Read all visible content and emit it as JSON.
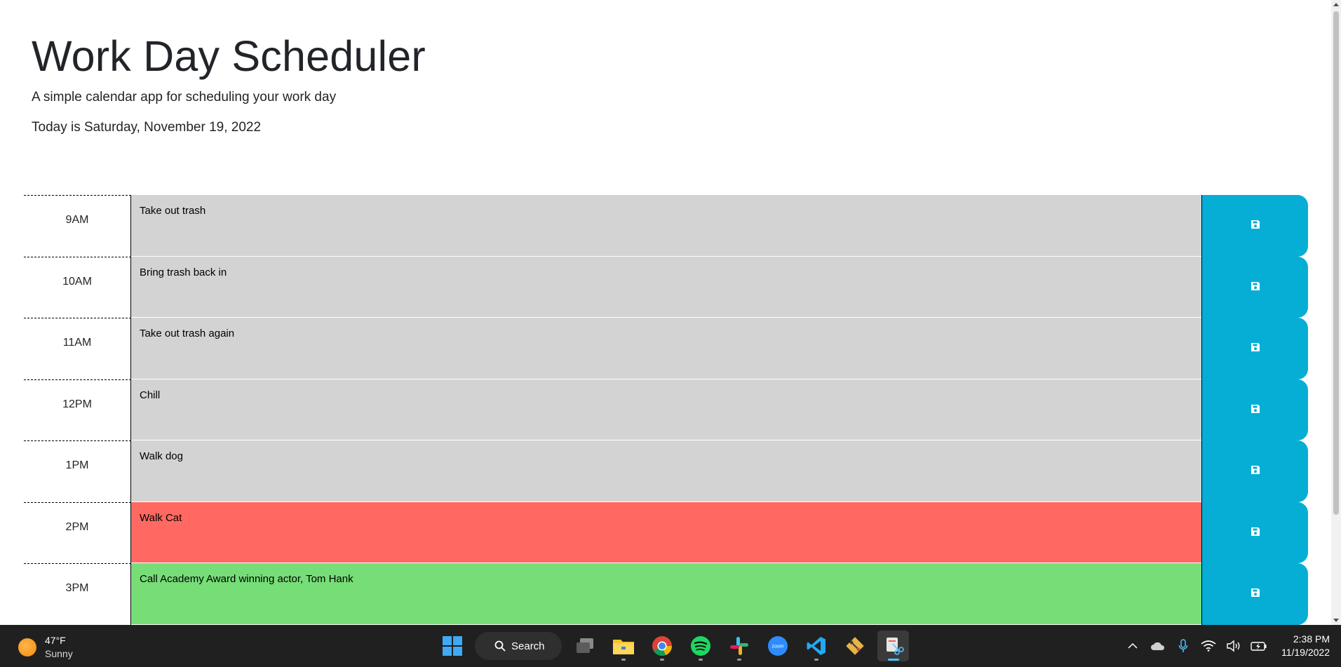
{
  "header": {
    "title": "Work Day Scheduler",
    "lead": "A simple calendar app for scheduling your work day",
    "today": "Today is Saturday, November 19, 2022"
  },
  "timeblocks": [
    {
      "hour": "9AM",
      "text": "Take out trash",
      "state": "past"
    },
    {
      "hour": "10AM",
      "text": "Bring trash back in",
      "state": "past"
    },
    {
      "hour": "11AM",
      "text": "Take out trash again",
      "state": "past"
    },
    {
      "hour": "12PM",
      "text": "Chill",
      "state": "past"
    },
    {
      "hour": "1PM",
      "text": "Walk dog",
      "state": "past"
    },
    {
      "hour": "2PM",
      "text": "Walk Cat",
      "state": "present"
    },
    {
      "hour": "3PM",
      "text": "Call Academy Award winning actor, Tom Hank",
      "state": "future"
    }
  ],
  "colors": {
    "past": "#d3d3d3",
    "present": "#ff6961",
    "future": "#77dd77",
    "save_button": "#06aed5",
    "taskbar": "#202020"
  },
  "icons": {
    "save": "floppy-disk-icon"
  },
  "taskbar": {
    "weather": {
      "temp": "47°F",
      "condition": "Sunny"
    },
    "search_label": "Search",
    "apps": [
      "start",
      "search",
      "task-view",
      "file-explorer",
      "chrome",
      "spotify",
      "slack",
      "zoom",
      "vscode",
      "git",
      "snipping-tool"
    ],
    "zoom_label": "zoom",
    "clock": {
      "time": "2:38 PM",
      "date": "11/19/2022"
    }
  }
}
